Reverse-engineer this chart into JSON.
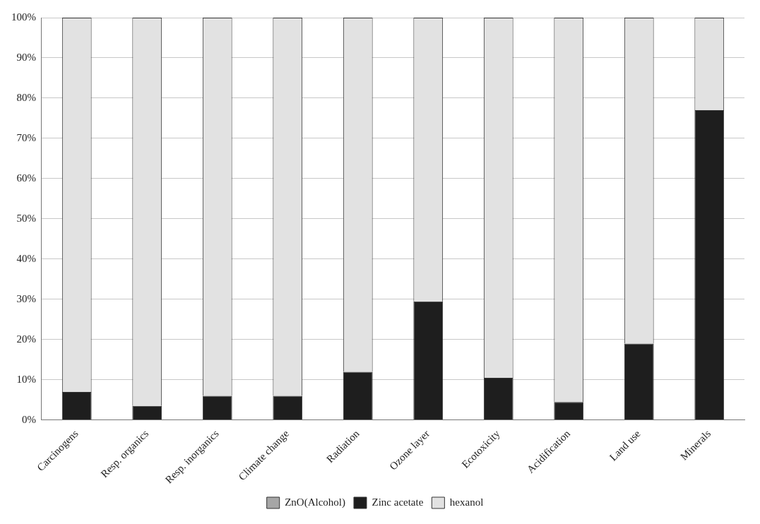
{
  "chart_data": {
    "type": "bar",
    "stacked": true,
    "categories": [
      "Carcinogens",
      "Resp. organics",
      "Resp. inorganics",
      "Climate change",
      "Radiation",
      "Ozone layer",
      "Ecotoxicity",
      "Acidification",
      "Land use",
      "Minerals"
    ],
    "series": [
      {
        "name": "ZnO(Alcohol)",
        "color": "#a6a6a6",
        "values": [
          0,
          0,
          0,
          0,
          0,
          0,
          0,
          0,
          0,
          0
        ]
      },
      {
        "name": "Zinc acetate",
        "color": "#1e1e1e",
        "values": [
          7,
          3.5,
          6,
          6,
          12,
          29.5,
          10.5,
          4.5,
          19,
          77
        ]
      },
      {
        "name": "hexanol",
        "color": "#e2e2e2",
        "values": [
          93,
          96.5,
          94,
          94,
          88,
          70.5,
          89.5,
          95.5,
          81,
          23
        ]
      }
    ],
    "ylim": [
      0,
      100
    ],
    "yticks": [
      {
        "value": 0,
        "label": "0%"
      },
      {
        "value": 10,
        "label": "10%"
      },
      {
        "value": 20,
        "label": "20%"
      },
      {
        "value": 30,
        "label": "30%"
      },
      {
        "value": 40,
        "label": "40%"
      },
      {
        "value": 50,
        "label": "50%"
      },
      {
        "value": 60,
        "label": "60%"
      },
      {
        "value": 70,
        "label": "70%"
      },
      {
        "value": 80,
        "label": "80%"
      },
      {
        "value": 90,
        "label": "90%"
      },
      {
        "value": 100,
        "label": "100%"
      }
    ],
    "grid": "y",
    "legend": "bottom"
  }
}
